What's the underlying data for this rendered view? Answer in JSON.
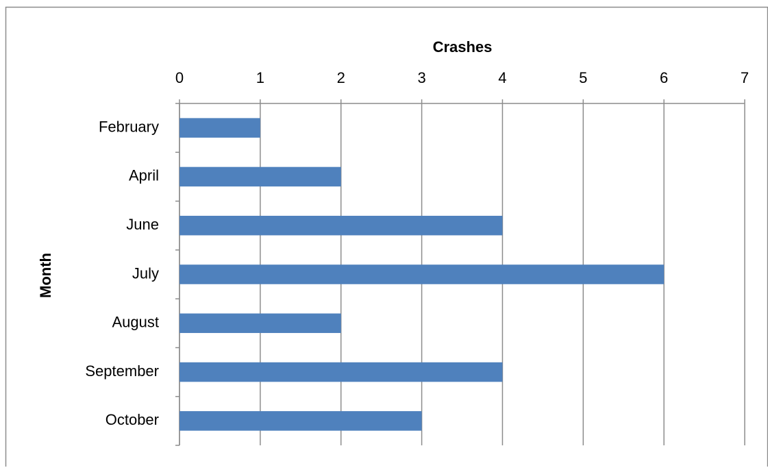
{
  "chart_data": {
    "type": "hbar",
    "x_label": "Crashes",
    "y_label": "Month",
    "categories": [
      "February",
      "April",
      "June",
      "July",
      "August",
      "September",
      "October"
    ],
    "values": [
      1,
      2,
      4,
      6,
      2,
      4,
      3
    ],
    "color": "#4f81bd",
    "xlim": [
      0,
      7
    ],
    "xticks": [
      0,
      1,
      2,
      3,
      4,
      5,
      6,
      7
    ],
    "x_axis_position": "top",
    "grid": true
  }
}
